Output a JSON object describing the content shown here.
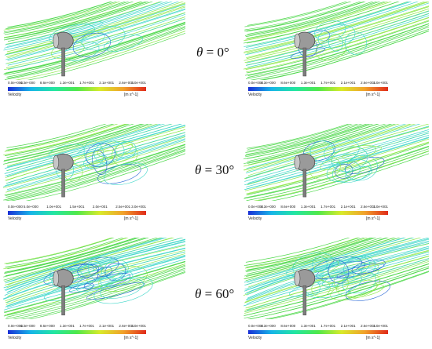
{
  "colors": {
    "green": "#4dd84a",
    "lime": "#8ee84a",
    "cyan": "#3fd7c9",
    "blue": "#2b6ad6",
    "yellow": "#e8e04a",
    "gray": "#9a9a9a",
    "dark": "#4a4a4a"
  },
  "colorbar_stops": [
    "#1a2fd6",
    "#16b5e8",
    "#22e6a2",
    "#4fe84a",
    "#d8ea2a",
    "#f1a12a",
    "#e02a1a"
  ],
  "rows": [
    {
      "angle_symbol": "θ",
      "angle_text": " = 0°",
      "left": {
        "ticks": [
          "0.0e+000",
          "4.3e+000",
          "8.6e+000",
          "1.3e+001",
          "1.7e+001",
          "2.1e+001",
          "2.6e+001",
          "3.0e+001"
        ],
        "variable": "Velocity",
        "unit": "[m s^-1]"
      },
      "right": {
        "ticks": [
          "0.0e+000",
          "4.3e+000",
          "8.6e+000",
          "1.3e+001",
          "1.7e+001",
          "2.1e+001",
          "2.6e+001",
          "3.0e+001"
        ],
        "variable": "Velocity",
        "unit": "[m s^-1]"
      }
    },
    {
      "angle_symbol": "θ",
      "angle_text": " = 30°",
      "left": {
        "ticks": [
          "0.0e+000",
          "5.0e+000",
          "1.0e+001",
          "1.5e+001",
          "2.0e+001",
          "2.5e+001",
          "3.0e+001"
        ],
        "variable": "Velocity",
        "unit": "[m s^-1]"
      },
      "right": {
        "ticks": [
          "0.0e+000",
          "4.3e+000",
          "8.6e+000",
          "1.3e+001",
          "1.7e+001",
          "2.1e+001",
          "2.6e+001",
          "3.0e+001"
        ],
        "variable": "Velocity",
        "unit": "[m s^-1]"
      }
    },
    {
      "angle_symbol": "θ",
      "angle_text": " = 60°",
      "left": {
        "ticks": [
          "0.0e+000",
          "4.3e+000",
          "8.6e+000",
          "1.3e+001",
          "1.7e+001",
          "2.1e+001",
          "2.6e+001",
          "3.0e+001"
        ],
        "variable": "Velocity",
        "unit": "[m s^-1]"
      },
      "right": {
        "ticks": [
          "0.0e+000",
          "4.3e+000",
          "8.6e+000",
          "1.3e+001",
          "1.7e+001",
          "2.1e+001",
          "2.6e+001",
          "3.0e+001"
        ],
        "variable": "Velocity",
        "unit": "[m s^-1]"
      }
    }
  ]
}
